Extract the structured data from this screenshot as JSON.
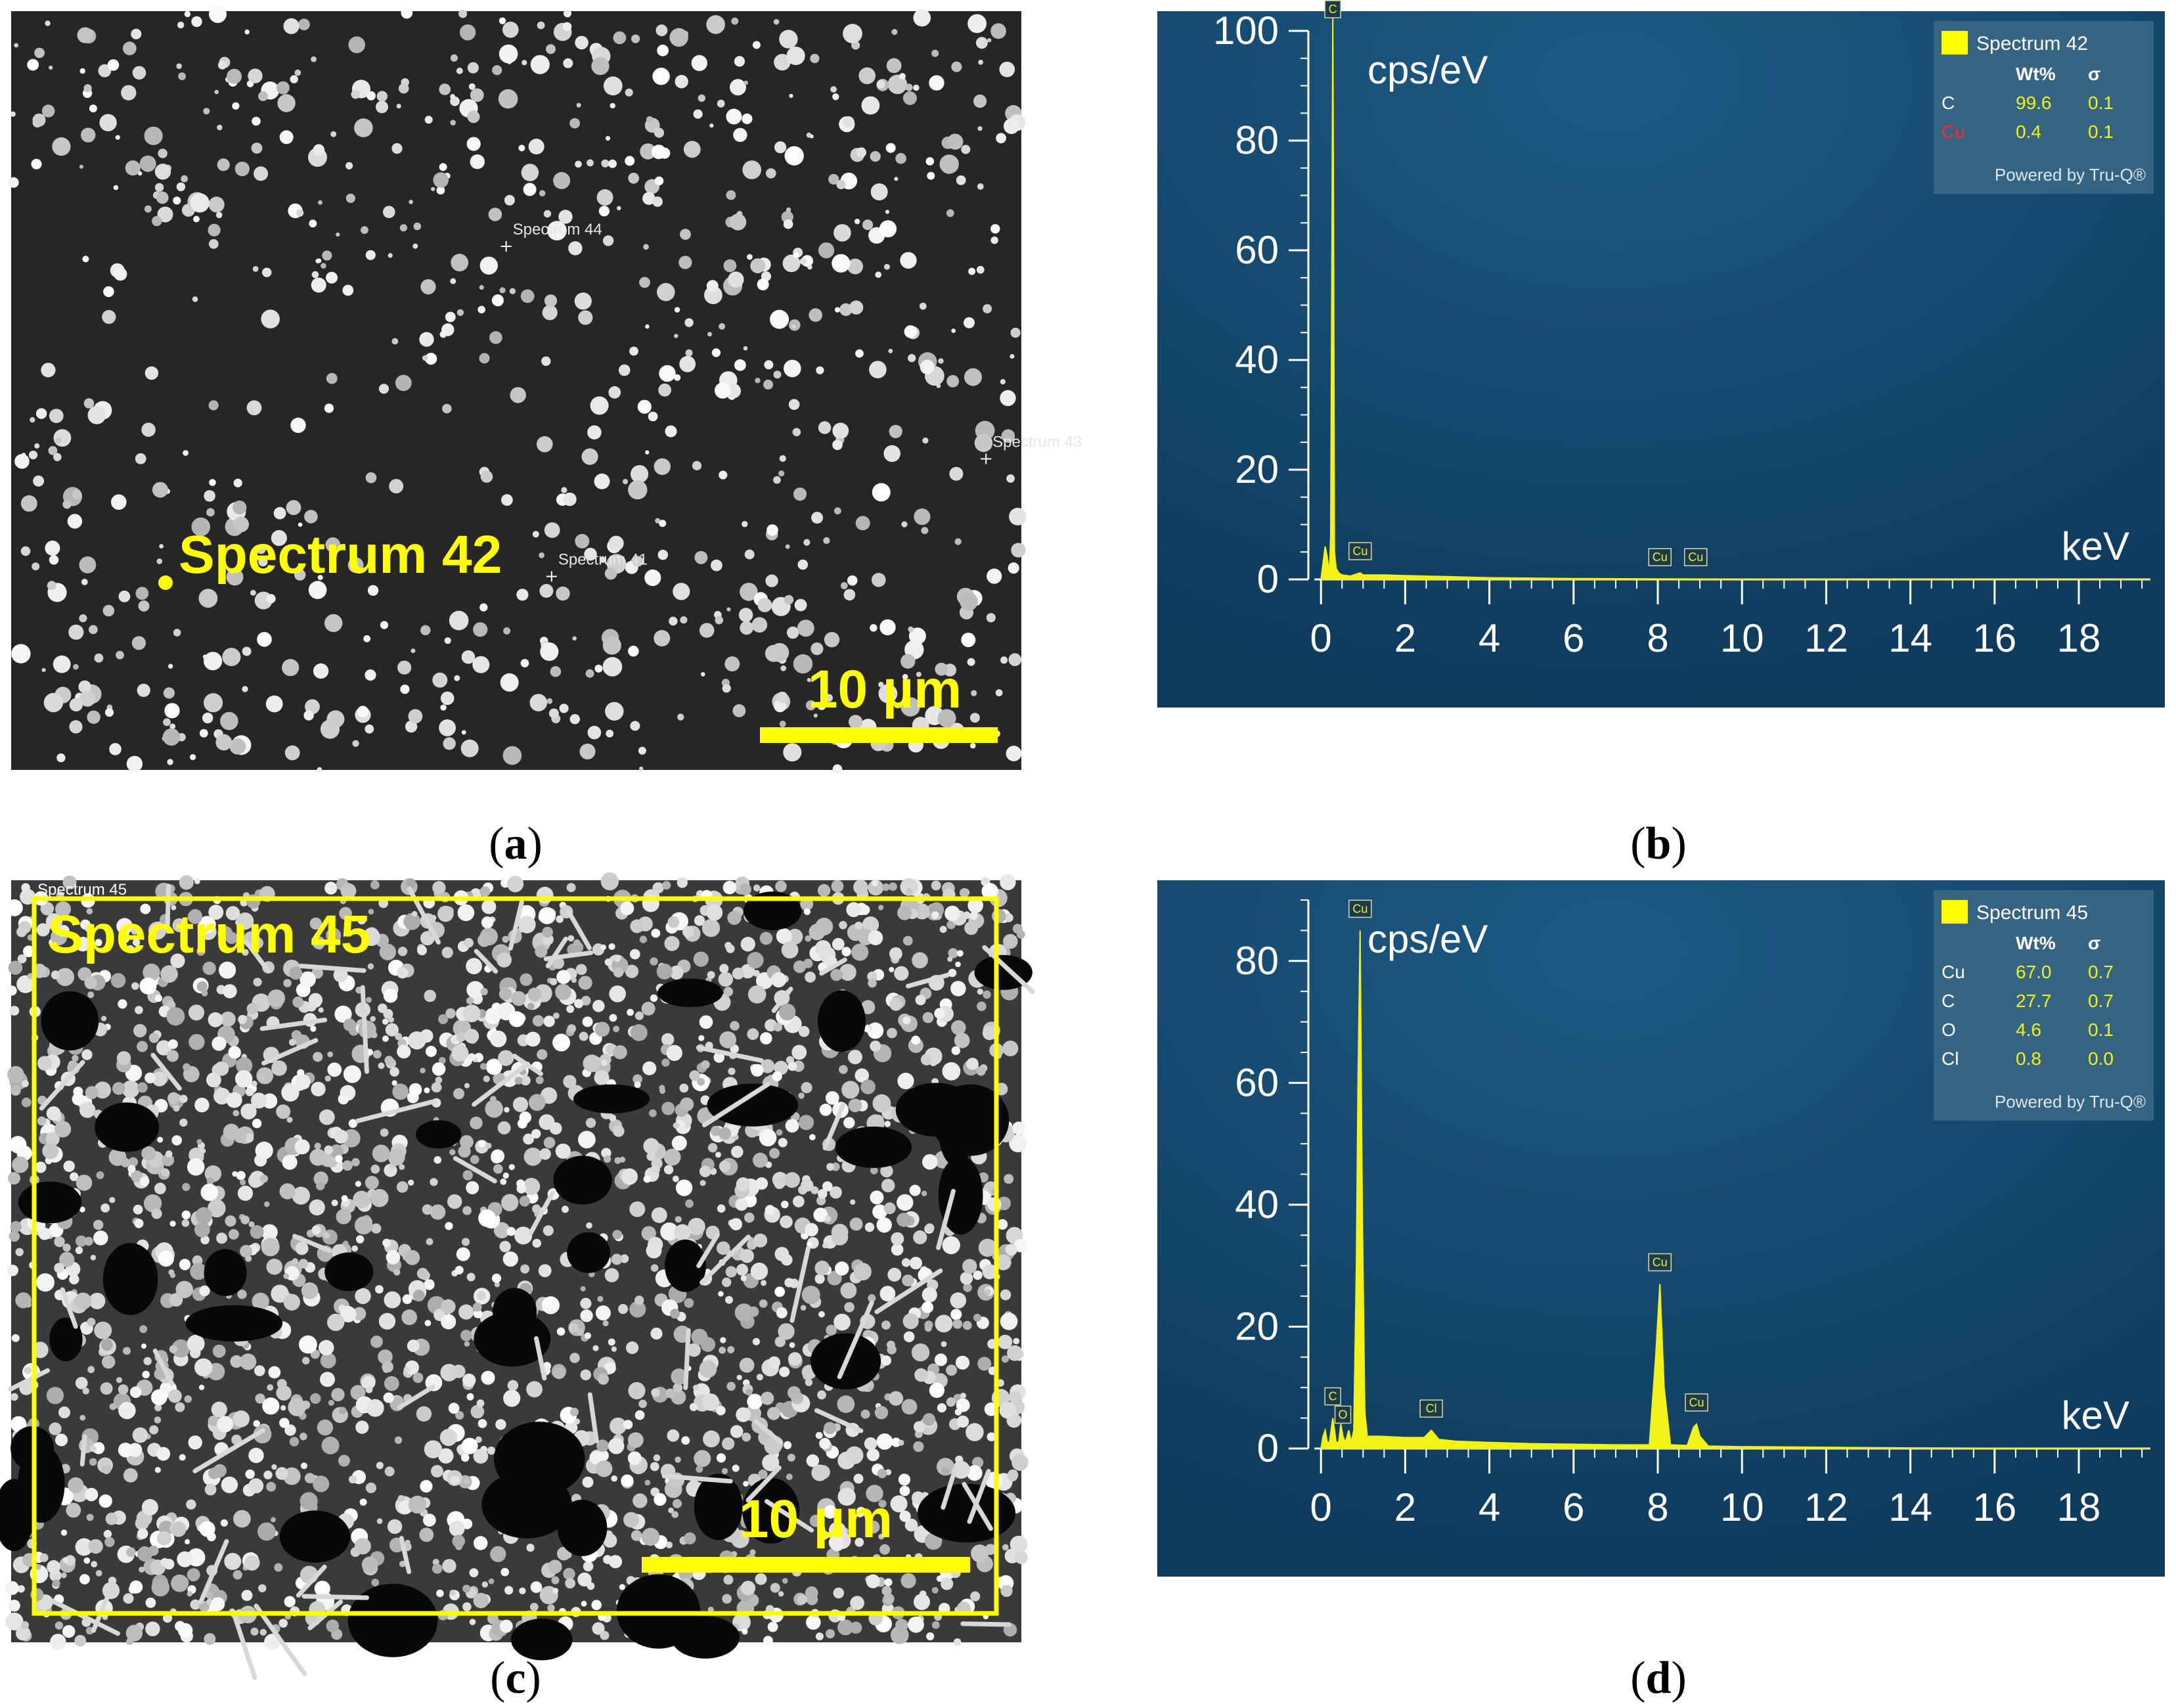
{
  "panels": {
    "a": {
      "caption": "a",
      "markers": [
        {
          "label": "Spectrum 44",
          "x": 0.49,
          "y": 0.31
        },
        {
          "label": "Spectrum 43",
          "x": 0.965,
          "y": 0.59
        },
        {
          "label": "Spectrum 41",
          "x": 0.535,
          "y": 0.745
        },
        {
          "label": "Spectrum 42",
          "x": 0.153,
          "y": 0.755
        }
      ],
      "highlight_label": "Spectrum 42",
      "scale_bar": "10 µm"
    },
    "c": {
      "caption": "c",
      "small_label": "Spectrum 45",
      "highlight_label": "Spectrum 45",
      "scale_bar": "10 µm"
    },
    "b": {
      "caption": "b"
    },
    "d": {
      "caption": "d"
    }
  },
  "colors": {
    "spectrum_bg": "#0e3a5c",
    "spectrum_fill": "#f2f21a",
    "highlight": "#ffff00",
    "cu_label_red": "#ff2a2a",
    "axis": "#ffffff"
  },
  "chart_data": [
    {
      "type": "area",
      "panel": "b",
      "title": "",
      "ylabel": "cps/eV",
      "xlabel": "keV",
      "xlim": [
        -0.3,
        19.7
      ],
      "ylim": [
        0,
        100
      ],
      "x_ticks": [
        0,
        2,
        4,
        6,
        8,
        10,
        12,
        14,
        16,
        18
      ],
      "y_ticks": [
        0,
        20,
        40,
        60,
        80,
        100
      ],
      "grid": false,
      "legend": {
        "placement": "top-right",
        "series_name": "Spectrum 42",
        "col1": "Wt%",
        "col2": "σ",
        "footer": "Powered by Tru-Q®"
      },
      "composition": [
        {
          "element": "C",
          "wt": "99.6",
          "sigma": "0.1",
          "color": "#ffffff"
        },
        {
          "element": "Cu",
          "wt": "0.4",
          "sigma": "0.1",
          "color": "#ff2a2a"
        }
      ],
      "series": [
        {
          "name": "Spectrum 42",
          "x": [
            0,
            0.05,
            0.1,
            0.15,
            0.2,
            0.23,
            0.26,
            0.28,
            0.3,
            0.32,
            0.36,
            0.42,
            0.5,
            0.7,
            0.93,
            1.0,
            1.5,
            2,
            3,
            4,
            6,
            8,
            10,
            14,
            18,
            19.7
          ],
          "y": [
            0,
            3,
            6,
            4,
            1,
            8,
            60,
            103,
            60,
            5,
            2,
            1.2,
            0.8,
            0.6,
            1.2,
            0.8,
            0.8,
            0.7,
            0.5,
            0.3,
            0.15,
            0.1,
            0.05,
            0.02,
            0.01,
            0
          ]
        }
      ],
      "peak_labels": [
        {
          "label": "C",
          "x": 0.28,
          "y": 103
        },
        {
          "label": "Cu",
          "x": 0.93,
          "y": 1.2
        },
        {
          "label": "Cu",
          "x": 8.05,
          "y": 0.1
        },
        {
          "label": "Cu",
          "x": 8.9,
          "y": 0.1
        }
      ]
    },
    {
      "type": "area",
      "panel": "d",
      "title": "",
      "ylabel": "cps/eV",
      "xlabel": "keV",
      "xlim": [
        -0.3,
        19.7
      ],
      "ylim": [
        0,
        90
      ],
      "x_ticks": [
        0,
        2,
        4,
        6,
        8,
        10,
        12,
        14,
        16,
        18
      ],
      "y_ticks": [
        0,
        20,
        40,
        60,
        80
      ],
      "grid": false,
      "legend": {
        "placement": "top-right",
        "series_name": "Spectrum 45",
        "col1": "Wt%",
        "col2": "σ",
        "footer": "Powered by Tru-Q®"
      },
      "composition": [
        {
          "element": "Cu",
          "wt": "67.0",
          "sigma": "0.7",
          "color": "#ffffff"
        },
        {
          "element": "C",
          "wt": "27.7",
          "sigma": "0.7",
          "color": "#ffffff"
        },
        {
          "element": "O",
          "wt": "4.6",
          "sigma": "0.1",
          "color": "#ffffff"
        },
        {
          "element": "Cl",
          "wt": "0.8",
          "sigma": "0.0",
          "color": "#ffffff"
        }
      ],
      "series": [
        {
          "name": "Spectrum 45",
          "x": [
            0,
            0.05,
            0.1,
            0.15,
            0.2,
            0.28,
            0.36,
            0.42,
            0.47,
            0.52,
            0.58,
            0.66,
            0.72,
            0.78,
            0.84,
            0.88,
            0.93,
            0.98,
            1.04,
            1.1,
            1.4,
            2,
            2.45,
            2.62,
            2.8,
            3.2,
            4,
            5,
            6,
            7,
            7.8,
            7.95,
            8.05,
            8.15,
            8.3,
            8.7,
            8.85,
            8.92,
            9.0,
            9.2,
            10,
            12,
            14,
            16,
            18,
            19.7
          ],
          "y": [
            0,
            2,
            3,
            1,
            1,
            5,
            1,
            1,
            4,
            2,
            1,
            3,
            1,
            3,
            30,
            60,
            85,
            40,
            6,
            2,
            2,
            1.8,
            1.8,
            3,
            1.5,
            1.2,
            1,
            0.8,
            0.7,
            0.6,
            0.6,
            15,
            27,
            10,
            0.6,
            0.5,
            3.5,
            4,
            2,
            0.4,
            0.3,
            0.2,
            0.1,
            0.05,
            0.02,
            0
          ]
        }
      ],
      "peak_labels": [
        {
          "label": "Cu",
          "x": 0.93,
          "y": 85
        },
        {
          "label": "C",
          "x": 0.28,
          "y": 5
        },
        {
          "label": "O",
          "x": 0.52,
          "y": 2
        },
        {
          "label": "Cl",
          "x": 2.62,
          "y": 3
        },
        {
          "label": "Cu",
          "x": 8.05,
          "y": 27
        },
        {
          "label": "Cu",
          "x": 8.92,
          "y": 4
        }
      ]
    }
  ]
}
